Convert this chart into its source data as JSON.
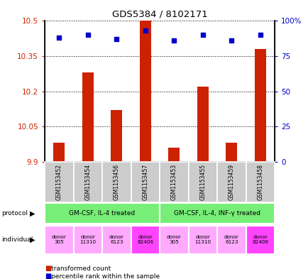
{
  "title": "GDS5384 / 8102171",
  "samples": [
    "GSM1153452",
    "GSM1153454",
    "GSM1153456",
    "GSM1153457",
    "GSM1153453",
    "GSM1153455",
    "GSM1153459",
    "GSM1153458"
  ],
  "bar_values": [
    9.98,
    10.28,
    10.12,
    10.5,
    9.96,
    10.22,
    9.98,
    10.38
  ],
  "percentile_values": [
    88,
    90,
    87,
    93,
    86,
    90,
    86,
    90
  ],
  "y_min": 9.9,
  "y_max": 10.5,
  "yticks": [
    9.9,
    10.05,
    10.2,
    10.35,
    10.5
  ],
  "ytick_labels": [
    "9.9",
    "10.05",
    "10.2",
    "10.35",
    "10.5"
  ],
  "right_yticks": [
    0,
    25,
    50,
    75,
    100
  ],
  "right_ytick_labels": [
    "0",
    "25",
    "50",
    "75",
    "100%"
  ],
  "bar_color": "#cc2200",
  "dot_color": "#0000cc",
  "protocol_labels": [
    "GM-CSF, IL-4 treated",
    "GM-CSF, IL-4, INF-γ treated"
  ],
  "protocol_color": "#77ee77",
  "protocol_groups": [
    4,
    4
  ],
  "individual_labels_left": [
    "donor\n305",
    "donor\n11310",
    "donor\n6123",
    "donor\n82406",
    "donor\n305",
    "donor\n11310",
    "donor\n6123",
    "donor\n82406"
  ],
  "individual_colors": [
    "#ffaaff",
    "#ffaaff",
    "#ffaaff",
    "#ff44ff",
    "#ffaaff",
    "#ffaaff",
    "#ffaaff",
    "#ff44ff"
  ],
  "sample_bg_color": "#cccccc",
  "left_label_color": "#cc2200",
  "right_label_color": "#0000cc",
  "figsize": [
    4.35,
    3.93
  ],
  "dpi": 100,
  "bar_width": 0.4
}
